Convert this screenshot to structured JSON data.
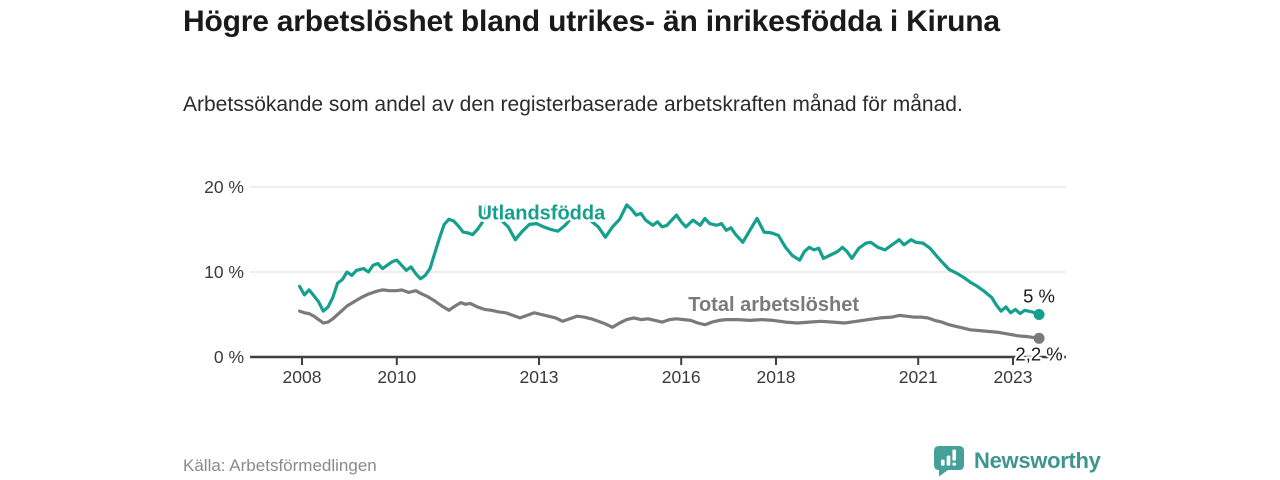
{
  "footer": {
    "logo_text": "Newsworthy"
  },
  "colors": {
    "accent_teal": "#15a08e",
    "series_gray": "#7a7a7a",
    "axis": "#3f3f3f",
    "grid": "#dcdcdc",
    "end_label": "#1a1a1a",
    "logo_teal": "#46a09a",
    "logo_text_teal": "#3f958f"
  },
  "chart_data": {
    "type": "line",
    "title": "Högre arbetslöshet bland utrikes- än inrikesfödda i Kiruna",
    "subtitle": "Arbetssökande som andel av den registerbaserade arbetskraften månad för månad.",
    "source": "Källa: Arbetsförmedlingen",
    "xlabel": "",
    "ylabel": "",
    "grid": "horizontal",
    "legend": "inline-labels",
    "x_range": [
      2006.9,
      2024.1
    ],
    "y_range": [
      0,
      20
    ],
    "x_ticks": [
      2008,
      2010,
      2013,
      2016,
      2018,
      2021,
      2023
    ],
    "y_ticks": [
      {
        "value": 0,
        "label": "0 %"
      },
      {
        "value": 10,
        "label": "10 %"
      },
      {
        "value": 20,
        "label": "20 %"
      }
    ],
    "series": [
      {
        "name": "Utlandsfödda",
        "color": "#15a08e",
        "end_label": "5 %",
        "last_value": 5.0,
        "label": {
          "text": "Utlandsfödda",
          "x": 2013.05,
          "y": 16.2
        },
        "points": [
          [
            2007.95,
            8.3
          ],
          [
            2008.05,
            7.3
          ],
          [
            2008.15,
            7.9
          ],
          [
            2008.25,
            7.2
          ],
          [
            2008.35,
            6.5
          ],
          [
            2008.45,
            5.4
          ],
          [
            2008.55,
            5.9
          ],
          [
            2008.65,
            7.0
          ],
          [
            2008.75,
            8.7
          ],
          [
            2008.85,
            9.1
          ],
          [
            2008.95,
            10.0
          ],
          [
            2009.05,
            9.6
          ],
          [
            2009.15,
            10.2
          ],
          [
            2009.3,
            10.4
          ],
          [
            2009.4,
            10.0
          ],
          [
            2009.5,
            10.8
          ],
          [
            2009.6,
            11.0
          ],
          [
            2009.7,
            10.4
          ],
          [
            2009.8,
            10.8
          ],
          [
            2009.9,
            11.2
          ],
          [
            2010.0,
            11.4
          ],
          [
            2010.1,
            10.8
          ],
          [
            2010.2,
            10.2
          ],
          [
            2010.3,
            10.6
          ],
          [
            2010.4,
            9.8
          ],
          [
            2010.5,
            9.2
          ],
          [
            2010.6,
            9.6
          ],
          [
            2010.7,
            10.4
          ],
          [
            2010.8,
            12.2
          ],
          [
            2010.9,
            14.0
          ],
          [
            2011.0,
            15.6
          ],
          [
            2011.1,
            16.2
          ],
          [
            2011.2,
            16.0
          ],
          [
            2011.3,
            15.4
          ],
          [
            2011.4,
            14.7
          ],
          [
            2011.5,
            14.6
          ],
          [
            2011.6,
            14.4
          ],
          [
            2011.7,
            15.0
          ],
          [
            2011.8,
            15.8
          ],
          [
            2011.9,
            17.9
          ],
          [
            2012.0,
            17.1
          ],
          [
            2012.1,
            16.5
          ],
          [
            2012.2,
            16.1
          ],
          [
            2012.35,
            15.3
          ],
          [
            2012.5,
            13.8
          ],
          [
            2012.65,
            14.8
          ],
          [
            2012.8,
            15.6
          ],
          [
            2012.95,
            15.7
          ],
          [
            2013.1,
            15.3
          ],
          [
            2013.25,
            15.0
          ],
          [
            2013.4,
            14.8
          ],
          [
            2013.55,
            15.5
          ],
          [
            2013.7,
            16.5
          ],
          [
            2013.8,
            17.7
          ],
          [
            2013.95,
            16.8
          ],
          [
            2014.1,
            16.0
          ],
          [
            2014.25,
            15.3
          ],
          [
            2014.4,
            14.1
          ],
          [
            2014.55,
            15.3
          ],
          [
            2014.7,
            16.2
          ],
          [
            2014.85,
            17.9
          ],
          [
            2014.95,
            17.4
          ],
          [
            2015.05,
            16.7
          ],
          [
            2015.15,
            16.9
          ],
          [
            2015.25,
            16.1
          ],
          [
            2015.4,
            15.5
          ],
          [
            2015.5,
            15.9
          ],
          [
            2015.6,
            15.3
          ],
          [
            2015.7,
            15.5
          ],
          [
            2015.8,
            16.1
          ],
          [
            2015.9,
            16.7
          ],
          [
            2016.0,
            15.9
          ],
          [
            2016.1,
            15.3
          ],
          [
            2016.25,
            16.1
          ],
          [
            2016.4,
            15.5
          ],
          [
            2016.5,
            16.3
          ],
          [
            2016.6,
            15.7
          ],
          [
            2016.75,
            15.5
          ],
          [
            2016.85,
            15.7
          ],
          [
            2016.95,
            14.9
          ],
          [
            2017.05,
            15.2
          ],
          [
            2017.15,
            14.4
          ],
          [
            2017.3,
            13.5
          ],
          [
            2017.45,
            14.9
          ],
          [
            2017.6,
            16.3
          ],
          [
            2017.75,
            14.7
          ],
          [
            2017.9,
            14.6
          ],
          [
            2018.05,
            14.3
          ],
          [
            2018.2,
            12.9
          ],
          [
            2018.35,
            11.9
          ],
          [
            2018.5,
            11.4
          ],
          [
            2018.6,
            12.4
          ],
          [
            2018.7,
            12.9
          ],
          [
            2018.8,
            12.6
          ],
          [
            2018.9,
            12.8
          ],
          [
            2019.0,
            11.6
          ],
          [
            2019.15,
            12.0
          ],
          [
            2019.3,
            12.4
          ],
          [
            2019.4,
            12.9
          ],
          [
            2019.5,
            12.4
          ],
          [
            2019.6,
            11.6
          ],
          [
            2019.75,
            12.8
          ],
          [
            2019.9,
            13.4
          ],
          [
            2020.0,
            13.5
          ],
          [
            2020.15,
            12.9
          ],
          [
            2020.3,
            12.6
          ],
          [
            2020.45,
            13.2
          ],
          [
            2020.6,
            13.8
          ],
          [
            2020.7,
            13.2
          ],
          [
            2020.85,
            13.8
          ],
          [
            2020.95,
            13.5
          ],
          [
            2021.1,
            13.4
          ],
          [
            2021.25,
            12.8
          ],
          [
            2021.4,
            11.8
          ],
          [
            2021.5,
            11.2
          ],
          [
            2021.65,
            10.3
          ],
          [
            2021.8,
            9.9
          ],
          [
            2021.95,
            9.4
          ],
          [
            2022.1,
            8.8
          ],
          [
            2022.25,
            8.3
          ],
          [
            2022.4,
            7.7
          ],
          [
            2022.55,
            7.0
          ],
          [
            2022.65,
            6.1
          ],
          [
            2022.75,
            5.4
          ],
          [
            2022.85,
            5.9
          ],
          [
            2022.95,
            5.2
          ],
          [
            2023.05,
            5.6
          ],
          [
            2023.15,
            5.1
          ],
          [
            2023.25,
            5.5
          ],
          [
            2023.4,
            5.3
          ],
          [
            2023.55,
            5.0
          ]
        ]
      },
      {
        "name": "Total arbetslöshet",
        "color": "#7a7a7a",
        "end_label": "2,2 %",
        "last_value": 2.2,
        "label": {
          "text": "Total arbetslöshet",
          "x": 2017.95,
          "y": 5.4
        },
        "points": [
          [
            2007.95,
            5.4
          ],
          [
            2008.05,
            5.2
          ],
          [
            2008.15,
            5.1
          ],
          [
            2008.25,
            4.8
          ],
          [
            2008.35,
            4.4
          ],
          [
            2008.45,
            4.0
          ],
          [
            2008.55,
            4.1
          ],
          [
            2008.65,
            4.5
          ],
          [
            2008.75,
            5.0
          ],
          [
            2008.85,
            5.5
          ],
          [
            2008.95,
            6.0
          ],
          [
            2009.1,
            6.5
          ],
          [
            2009.25,
            7.0
          ],
          [
            2009.4,
            7.4
          ],
          [
            2009.55,
            7.7
          ],
          [
            2009.7,
            7.9
          ],
          [
            2009.85,
            7.8
          ],
          [
            2010.0,
            7.8
          ],
          [
            2010.1,
            7.9
          ],
          [
            2010.25,
            7.6
          ],
          [
            2010.4,
            7.8
          ],
          [
            2010.5,
            7.5
          ],
          [
            2010.65,
            7.1
          ],
          [
            2010.8,
            6.6
          ],
          [
            2010.95,
            6.0
          ],
          [
            2011.1,
            5.5
          ],
          [
            2011.2,
            5.9
          ],
          [
            2011.35,
            6.4
          ],
          [
            2011.45,
            6.2
          ],
          [
            2011.55,
            6.3
          ],
          [
            2011.7,
            5.9
          ],
          [
            2011.85,
            5.6
          ],
          [
            2012.0,
            5.5
          ],
          [
            2012.15,
            5.3
          ],
          [
            2012.3,
            5.2
          ],
          [
            2012.45,
            4.9
          ],
          [
            2012.6,
            4.6
          ],
          [
            2012.75,
            4.9
          ],
          [
            2012.9,
            5.2
          ],
          [
            2013.05,
            5.0
          ],
          [
            2013.2,
            4.8
          ],
          [
            2013.35,
            4.6
          ],
          [
            2013.5,
            4.2
          ],
          [
            2013.65,
            4.5
          ],
          [
            2013.8,
            4.8
          ],
          [
            2013.95,
            4.7
          ],
          [
            2014.1,
            4.5
          ],
          [
            2014.25,
            4.2
          ],
          [
            2014.4,
            3.9
          ],
          [
            2014.55,
            3.5
          ],
          [
            2014.7,
            4.0
          ],
          [
            2014.85,
            4.4
          ],
          [
            2015.0,
            4.6
          ],
          [
            2015.15,
            4.4
          ],
          [
            2015.3,
            4.5
          ],
          [
            2015.45,
            4.3
          ],
          [
            2015.6,
            4.1
          ],
          [
            2015.75,
            4.4
          ],
          [
            2015.9,
            4.5
          ],
          [
            2016.05,
            4.4
          ],
          [
            2016.2,
            4.3
          ],
          [
            2016.35,
            4.0
          ],
          [
            2016.5,
            3.8
          ],
          [
            2016.65,
            4.1
          ],
          [
            2016.8,
            4.3
          ],
          [
            2016.95,
            4.4
          ],
          [
            2017.2,
            4.4
          ],
          [
            2017.45,
            4.3
          ],
          [
            2017.7,
            4.4
          ],
          [
            2017.95,
            4.3
          ],
          [
            2018.2,
            4.1
          ],
          [
            2018.45,
            4.0
          ],
          [
            2018.7,
            4.1
          ],
          [
            2018.95,
            4.2
          ],
          [
            2019.2,
            4.1
          ],
          [
            2019.45,
            4.0
          ],
          [
            2019.7,
            4.2
          ],
          [
            2019.95,
            4.4
          ],
          [
            2020.2,
            4.6
          ],
          [
            2020.45,
            4.7
          ],
          [
            2020.6,
            4.9
          ],
          [
            2020.75,
            4.8
          ],
          [
            2020.9,
            4.7
          ],
          [
            2021.05,
            4.7
          ],
          [
            2021.2,
            4.6
          ],
          [
            2021.35,
            4.3
          ],
          [
            2021.5,
            4.1
          ],
          [
            2021.65,
            3.8
          ],
          [
            2021.8,
            3.6
          ],
          [
            2021.95,
            3.4
          ],
          [
            2022.1,
            3.2
          ],
          [
            2022.3,
            3.1
          ],
          [
            2022.5,
            3.0
          ],
          [
            2022.7,
            2.9
          ],
          [
            2022.9,
            2.7
          ],
          [
            2023.1,
            2.5
          ],
          [
            2023.3,
            2.4
          ],
          [
            2023.55,
            2.2
          ]
        ]
      }
    ]
  }
}
